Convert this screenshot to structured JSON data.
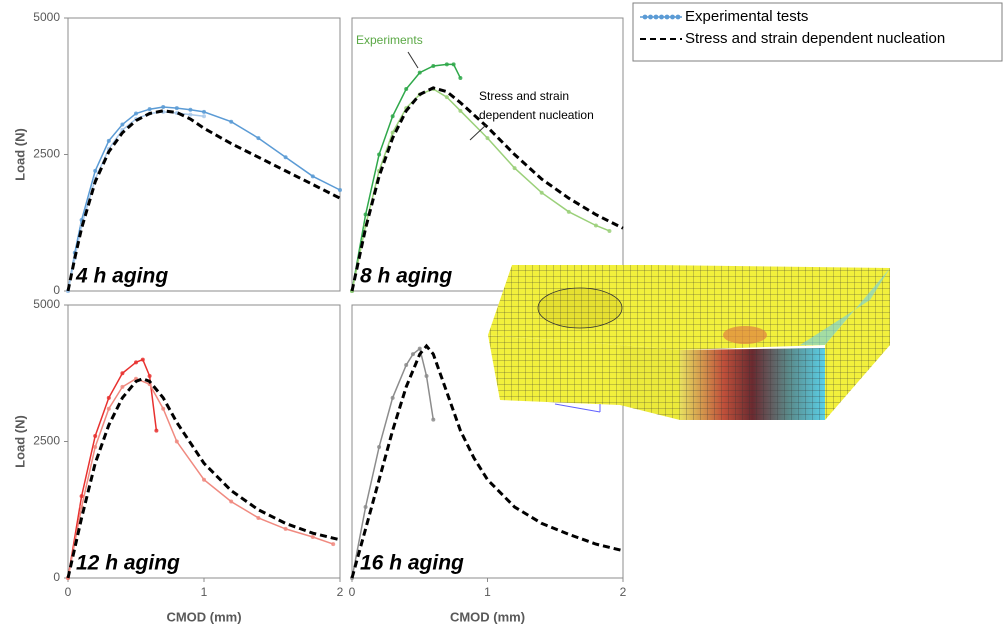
{
  "legend": [
    {
      "name": "Experimental tests",
      "color": "#5b9bd5",
      "markers": true
    },
    {
      "name": "Stress and strain dependent nucleation",
      "color": "#000000",
      "dashed": true
    }
  ],
  "chart_data": [
    {
      "type": "line",
      "label": "4 h aging",
      "ylabel": "Load (N)",
      "xlim": [
        0,
        2
      ],
      "ylim": [
        0,
        5000
      ],
      "yticks": [
        0,
        2500,
        5000
      ],
      "series": [
        {
          "color": "#5b9bd5",
          "markers": true,
          "x": [
            0,
            0.05,
            0.1,
            0.2,
            0.3,
            0.4,
            0.5,
            0.6,
            0.7,
            0.8,
            0.9,
            1.0,
            1.2,
            1.4,
            1.6,
            1.8,
            2.0
          ],
          "values": [
            0,
            700,
            1300,
            2200,
            2750,
            3050,
            3250,
            3330,
            3370,
            3350,
            3320,
            3280,
            3100,
            2800,
            2450,
            2100,
            1850
          ]
        },
        {
          "color": "#a9c9ea",
          "markers": true,
          "x": [
            0,
            0.05,
            0.1,
            0.2,
            0.3,
            0.4,
            0.5,
            0.6,
            0.7,
            0.8,
            0.9,
            1.0
          ],
          "values": [
            0,
            600,
            1200,
            2050,
            2600,
            2950,
            3150,
            3250,
            3280,
            3260,
            3230,
            3200
          ]
        },
        {
          "color": "#000000",
          "dashed": true,
          "x": [
            0,
            0.05,
            0.1,
            0.2,
            0.3,
            0.4,
            0.5,
            0.6,
            0.7,
            0.8,
            0.9,
            1.0,
            1.2,
            1.4,
            1.6,
            1.8,
            2.0
          ],
          "values": [
            0,
            600,
            1150,
            2000,
            2550,
            2900,
            3120,
            3250,
            3300,
            3270,
            3150,
            2980,
            2700,
            2450,
            2200,
            1950,
            1700
          ]
        }
      ]
    },
    {
      "type": "line",
      "label": "8 h aging",
      "xlim": [
        0,
        2
      ],
      "ylim": [
        0,
        5000
      ],
      "annotations": [
        {
          "lines": [
            "Experiments"
          ],
          "color": "#5aa845"
        },
        {
          "lines": [
            "Stress and strain",
            "dependent nucleation"
          ],
          "color": "#000000"
        }
      ],
      "series": [
        {
          "color": "#2fa84a",
          "markers": true,
          "x": [
            0,
            0.1,
            0.2,
            0.3,
            0.4,
            0.5,
            0.6,
            0.7,
            0.75,
            0.8
          ],
          "values": [
            0,
            1400,
            2500,
            3200,
            3700,
            4000,
            4120,
            4150,
            4150,
            3900
          ]
        },
        {
          "color": "#9bd07a",
          "markers": true,
          "x": [
            0,
            0.1,
            0.2,
            0.3,
            0.4,
            0.5,
            0.6,
            0.7,
            0.8,
            1.0,
            1.2,
            1.4,
            1.6,
            1.8,
            1.9
          ],
          "values": [
            0,
            1200,
            2200,
            2900,
            3350,
            3600,
            3700,
            3550,
            3300,
            2800,
            2250,
            1800,
            1450,
            1200,
            1100
          ]
        },
        {
          "color": "#000000",
          "dashed": true,
          "x": [
            0,
            0.1,
            0.2,
            0.3,
            0.4,
            0.5,
            0.6,
            0.7,
            0.8,
            1.0,
            1.2,
            1.4,
            1.6,
            1.8,
            2.0
          ],
          "values": [
            0,
            1150,
            2100,
            2800,
            3300,
            3600,
            3720,
            3650,
            3450,
            3000,
            2500,
            2050,
            1700,
            1400,
            1150
          ]
        }
      ]
    },
    {
      "type": "line",
      "label": "12 h aging",
      "ylabel": "Load (N)",
      "xlabel": "CMOD (mm)",
      "xlim": [
        0,
        2
      ],
      "ylim": [
        0,
        5000
      ],
      "yticks": [
        0,
        2500,
        5000
      ],
      "xticks": [
        0,
        1,
        2
      ],
      "series": [
        {
          "color": "#e8312f",
          "markers": true,
          "x": [
            0,
            0.1,
            0.2,
            0.3,
            0.4,
            0.5,
            0.55,
            0.6,
            0.65
          ],
          "values": [
            0,
            1500,
            2600,
            3300,
            3750,
            3950,
            4000,
            3700,
            2700
          ]
        },
        {
          "color": "#f08a80",
          "markers": true,
          "x": [
            0,
            0.1,
            0.2,
            0.3,
            0.4,
            0.5,
            0.6,
            0.7,
            0.8,
            1.0,
            1.2,
            1.4,
            1.6,
            1.8,
            1.95
          ],
          "values": [
            0,
            1300,
            2400,
            3100,
            3500,
            3650,
            3550,
            3100,
            2500,
            1800,
            1400,
            1100,
            900,
            750,
            620
          ]
        },
        {
          "color": "#000000",
          "dashed": true,
          "x": [
            0,
            0.1,
            0.2,
            0.3,
            0.4,
            0.5,
            0.55,
            0.6,
            0.7,
            0.8,
            1.0,
            1.2,
            1.4,
            1.6,
            1.8,
            2.0
          ],
          "values": [
            0,
            1100,
            2100,
            2800,
            3300,
            3600,
            3650,
            3600,
            3300,
            2850,
            2100,
            1600,
            1250,
            1000,
            820,
            700
          ]
        }
      ]
    },
    {
      "type": "line",
      "label": "16 h aging",
      "xlabel": "CMOD (mm)",
      "xlim": [
        0,
        2
      ],
      "ylim": [
        0,
        5000
      ],
      "xticks": [
        0,
        1,
        2
      ],
      "series": [
        {
          "color": "#8c8c8c",
          "markers": true,
          "x": [
            0,
            0.1,
            0.2,
            0.3,
            0.4,
            0.45,
            0.5,
            0.55,
            0.6
          ],
          "values": [
            0,
            1300,
            2400,
            3300,
            3900,
            4100,
            4200,
            3700,
            2900
          ]
        },
        {
          "color": "#000000",
          "dashed": true,
          "x": [
            0,
            0.1,
            0.2,
            0.3,
            0.4,
            0.5,
            0.55,
            0.6,
            0.7,
            0.8,
            0.9,
            1.0,
            1.2,
            1.4,
            1.6,
            1.8,
            2.0
          ],
          "values": [
            0,
            900,
            1800,
            2700,
            3500,
            4100,
            4250,
            4100,
            3400,
            2700,
            2200,
            1800,
            1300,
            1000,
            800,
            620,
            500
          ]
        }
      ]
    }
  ]
}
